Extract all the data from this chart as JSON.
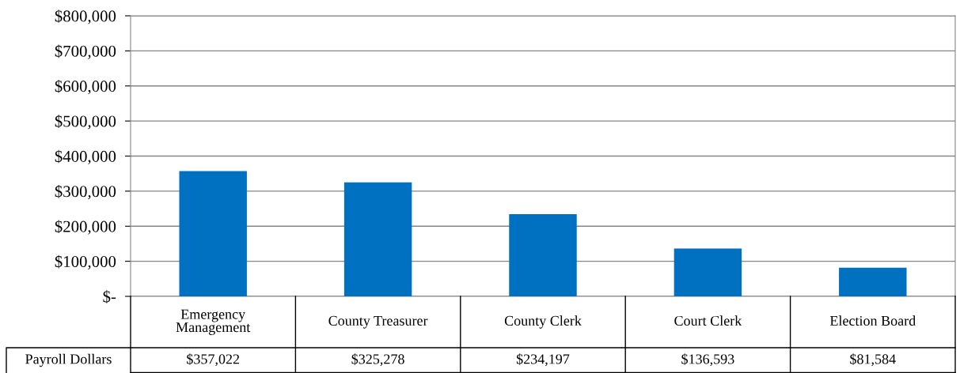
{
  "chart_data": {
    "type": "bar",
    "categories": [
      "Emergency\nManagement",
      "County Treasurer",
      "County Clerk",
      "Court Clerk",
      "Election Board"
    ],
    "series": [
      {
        "name": "Payroll Dollars",
        "color": "#0070c0",
        "values": [
          357022,
          325278,
          234197,
          136593,
          81584
        ],
        "value_labels": [
          "$357,022",
          "$325,278",
          "$234,197",
          "$136,593",
          "$81,584"
        ]
      }
    ],
    "ylim": [
      0,
      800000
    ],
    "yticks": [
      {
        "value": 0,
        "label": "$-"
      },
      {
        "value": 100000,
        "label": "$100,000"
      },
      {
        "value": 200000,
        "label": "$200,000"
      },
      {
        "value": 300000,
        "label": "$300,000"
      },
      {
        "value": 400000,
        "label": "$400,000"
      },
      {
        "value": 500000,
        "label": "$500,000"
      },
      {
        "value": 600000,
        "label": "$600,000"
      },
      {
        "value": 700000,
        "label": "$700,000"
      },
      {
        "value": 800000,
        "label": "$800,000"
      }
    ],
    "grid": "y"
  }
}
